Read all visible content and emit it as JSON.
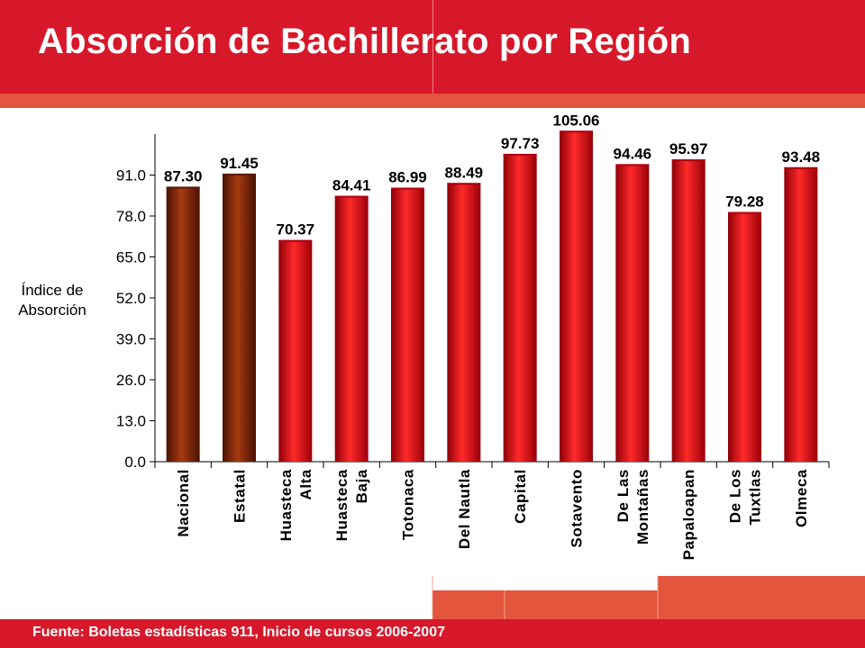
{
  "slide": {
    "title": "Absorción de Bachillerato por Región",
    "source": "Fuente: Boletas estadísticas 911, Inicio de cursos 2006-2007"
  },
  "colors": {
    "header_red": "#d7182a",
    "band_orange": "#e3553d",
    "bar_red": "#e8101a",
    "bar_brown": "#8b2a0c",
    "text_white": "#ffffff"
  },
  "chart_data": {
    "type": "bar",
    "ylabel": "Índice de Absorción",
    "ylabel_lines": [
      "Índice de",
      "Absorción"
    ],
    "ylim": [
      0,
      104
    ],
    "yticks": [
      "0.0",
      "13.0",
      "26.0",
      "39.0",
      "52.0",
      "65.0",
      "78.0",
      "91.0"
    ],
    "ytick_values": [
      0,
      13,
      26,
      39,
      52,
      65,
      78,
      91
    ],
    "grid": false,
    "categories": [
      {
        "lines": [
          "Nacional"
        ],
        "color": "brown"
      },
      {
        "lines": [
          "Estatal"
        ],
        "color": "brown"
      },
      {
        "lines": [
          "Huasteca",
          "Alta"
        ],
        "color": "red"
      },
      {
        "lines": [
          "Huasteca",
          "Baja"
        ],
        "color": "red"
      },
      {
        "lines": [
          "Totonaca"
        ],
        "color": "red"
      },
      {
        "lines": [
          "Del Nautla"
        ],
        "color": "red"
      },
      {
        "lines": [
          "Capital"
        ],
        "color": "red"
      },
      {
        "lines": [
          "Sotavento"
        ],
        "color": "red"
      },
      {
        "lines": [
          "De Las",
          "Montañas"
        ],
        "color": "red"
      },
      {
        "lines": [
          "Papaloapan"
        ],
        "color": "red"
      },
      {
        "lines": [
          "De Los",
          "Tuxtlas"
        ],
        "color": "red"
      },
      {
        "lines": [
          "Olmeca"
        ],
        "color": "red"
      }
    ],
    "values": [
      87.3,
      91.45,
      70.37,
      84.41,
      86.99,
      88.49,
      97.73,
      105.06,
      94.46,
      95.97,
      79.28,
      93.48
    ],
    "data_labels": [
      "87.30",
      "91.45",
      "70.37",
      "84.41",
      "86.99",
      "88.49",
      "97.73",
      "105.06",
      "94.46",
      "95.97",
      "79.28",
      "93.48"
    ]
  }
}
